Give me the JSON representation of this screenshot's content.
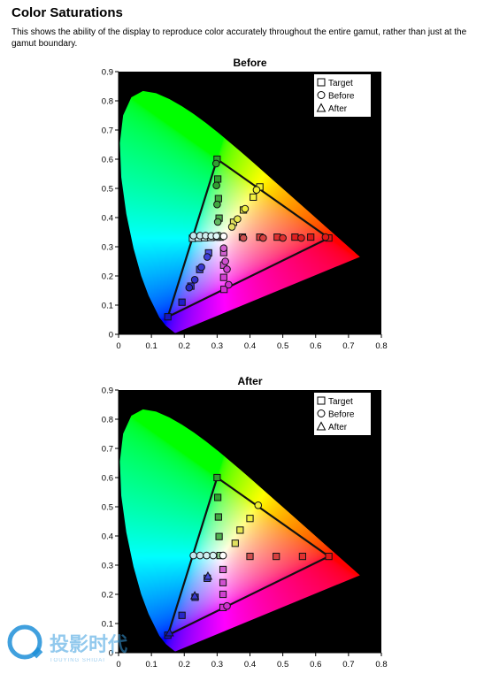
{
  "page": {
    "title": "Color Saturations",
    "description": "This shows the ability of the display to reproduce color accurately throughout the entire gamut, rather than just at the gamut boundary."
  },
  "watermark": {
    "text": "投影时代",
    "sub": "TOUYING SHIDAI"
  },
  "legend_labels": {
    "target": "Target",
    "before": "Before",
    "after": "After"
  },
  "chart_data": [
    {
      "type": "scatter",
      "title": "Before",
      "xlabel": "",
      "ylabel": "",
      "xlim": [
        0,
        0.8
      ],
      "ylim": [
        0,
        0.9
      ],
      "xticks": [
        "0",
        "0.1",
        "0.2",
        "0.3",
        "0.4",
        "0.5",
        "0.6",
        "0.7",
        "0.8"
      ],
      "yticks": [
        "0",
        "0.1",
        "0.2",
        "0.3",
        "0.4",
        "0.5",
        "0.6",
        "0.7",
        "0.8",
        "0.9"
      ],
      "legend_position": "top-right",
      "background": "#000000",
      "gamut_triangle": [
        [
          0.3,
          0.6
        ],
        [
          0.64,
          0.33
        ],
        [
          0.15,
          0.06
        ]
      ],
      "series": [
        {
          "name": "Target",
          "marker": "square",
          "points": [
            {
              "x": 0.3,
              "y": 0.6,
              "c": "#30a030"
            },
            {
              "x": 0.302,
              "y": 0.532,
              "c": "#30a030"
            },
            {
              "x": 0.304,
              "y": 0.465,
              "c": "#40a840"
            },
            {
              "x": 0.306,
              "y": 0.398,
              "c": "#50b050"
            },
            {
              "x": 0.309,
              "y": 0.333,
              "c": "#90d090"
            },
            {
              "x": 0.377,
              "y": 0.333,
              "c": "#d05050"
            },
            {
              "x": 0.43,
              "y": 0.333,
              "c": "#d84040"
            },
            {
              "x": 0.483,
              "y": 0.333,
              "c": "#e03030"
            },
            {
              "x": 0.537,
              "y": 0.333,
              "c": "#e02020"
            },
            {
              "x": 0.585,
              "y": 0.333,
              "c": "#e01818"
            },
            {
              "x": 0.64,
              "y": 0.33,
              "c": "#e01818"
            },
            {
              "x": 0.3,
              "y": 0.333,
              "c": "#c0d8ff"
            },
            {
              "x": 0.274,
              "y": 0.279,
              "c": "#5050e0"
            },
            {
              "x": 0.247,
              "y": 0.222,
              "c": "#4040d8"
            },
            {
              "x": 0.22,
              "y": 0.165,
              "c": "#3030d0"
            },
            {
              "x": 0.193,
              "y": 0.11,
              "c": "#2020c8"
            },
            {
              "x": 0.15,
              "y": 0.06,
              "c": "#1818c0"
            },
            {
              "x": 0.35,
              "y": 0.384,
              "c": "#e0e060"
            },
            {
              "x": 0.38,
              "y": 0.426,
              "c": "#e8e850"
            },
            {
              "x": 0.41,
              "y": 0.47,
              "c": "#f0f040"
            },
            {
              "x": 0.43,
              "y": 0.505,
              "c": "#f0f030"
            },
            {
              "x": 0.32,
              "y": 0.28,
              "c": "#d060d0"
            },
            {
              "x": 0.32,
              "y": 0.237,
              "c": "#d050d0"
            },
            {
              "x": 0.32,
              "y": 0.195,
              "c": "#d040d0"
            },
            {
              "x": 0.321,
              "y": 0.154,
              "c": "#d030d0"
            },
            {
              "x": 0.225,
              "y": 0.329,
              "c": "#c0e8f0"
            },
            {
              "x": 0.243,
              "y": 0.33,
              "c": "#c8ecf0"
            },
            {
              "x": 0.262,
              "y": 0.331,
              "c": "#d0f0f0"
            },
            {
              "x": 0.281,
              "y": 0.332,
              "c": "#d8f4f4"
            }
          ]
        },
        {
          "name": "Before",
          "marker": "circle",
          "points": [
            {
              "x": 0.297,
              "y": 0.585,
              "c": "#30a030"
            },
            {
              "x": 0.298,
              "y": 0.51,
              "c": "#30a030"
            },
            {
              "x": 0.3,
              "y": 0.445,
              "c": "#40a840"
            },
            {
              "x": 0.302,
              "y": 0.385,
              "c": "#60b860"
            },
            {
              "x": 0.305,
              "y": 0.338,
              "c": "#a0d8a0"
            },
            {
              "x": 0.38,
              "y": 0.33,
              "c": "#d05050"
            },
            {
              "x": 0.44,
              "y": 0.33,
              "c": "#d84040"
            },
            {
              "x": 0.5,
              "y": 0.33,
              "c": "#e03030"
            },
            {
              "x": 0.556,
              "y": 0.33,
              "c": "#e02020"
            },
            {
              "x": 0.63,
              "y": 0.333,
              "c": "#e01818"
            },
            {
              "x": 0.27,
              "y": 0.265,
              "c": "#4040d8"
            },
            {
              "x": 0.252,
              "y": 0.23,
              "c": "#3838d0"
            },
            {
              "x": 0.232,
              "y": 0.187,
              "c": "#3030c8"
            },
            {
              "x": 0.215,
              "y": 0.16,
              "c": "#2828c0"
            },
            {
              "x": 0.345,
              "y": 0.368,
              "c": "#e0e060"
            },
            {
              "x": 0.362,
              "y": 0.395,
              "c": "#e8e850"
            },
            {
              "x": 0.385,
              "y": 0.43,
              "c": "#f0f040"
            },
            {
              "x": 0.42,
              "y": 0.495,
              "c": "#f0f030"
            },
            {
              "x": 0.32,
              "y": 0.295,
              "c": "#d060d0"
            },
            {
              "x": 0.325,
              "y": 0.25,
              "c": "#d050d0"
            },
            {
              "x": 0.33,
              "y": 0.223,
              "c": "#d040d0"
            },
            {
              "x": 0.335,
              "y": 0.17,
              "c": "#d030d0"
            },
            {
              "x": 0.228,
              "y": 0.338,
              "c": "#c0e8f0"
            },
            {
              "x": 0.248,
              "y": 0.338,
              "c": "#c8ecf0"
            },
            {
              "x": 0.265,
              "y": 0.338,
              "c": "#d0f0f0"
            },
            {
              "x": 0.282,
              "y": 0.337,
              "c": "#d8f4f4"
            },
            {
              "x": 0.298,
              "y": 0.337,
              "c": "#e0f8f8"
            },
            {
              "x": 0.32,
              "y": 0.336,
              "c": "#ffffff"
            }
          ]
        }
      ]
    },
    {
      "type": "scatter",
      "title": "After",
      "xlabel": "",
      "ylabel": "",
      "xlim": [
        0,
        0.8
      ],
      "ylim": [
        0,
        0.9
      ],
      "xticks": [
        "0",
        "0.1",
        "0.2",
        "0.3",
        "0.4",
        "0.5",
        "0.6",
        "0.7",
        "0.8"
      ],
      "yticks": [
        "0",
        "0.1",
        "0.2",
        "0.3",
        "0.4",
        "0.5",
        "0.6",
        "0.7",
        "0.8",
        "0.9"
      ],
      "legend_position": "top-right",
      "background": "#000000",
      "gamut_triangle": [
        [
          0.3,
          0.6
        ],
        [
          0.64,
          0.33
        ],
        [
          0.15,
          0.06
        ]
      ],
      "series": [
        {
          "name": "Target",
          "marker": "square",
          "points": [
            {
              "x": 0.3,
              "y": 0.6,
              "c": "#30a030"
            },
            {
              "x": 0.302,
              "y": 0.532,
              "c": "#30a030"
            },
            {
              "x": 0.304,
              "y": 0.465,
              "c": "#40a840"
            },
            {
              "x": 0.306,
              "y": 0.398,
              "c": "#50b050"
            },
            {
              "x": 0.309,
              "y": 0.333,
              "c": "#90d090"
            },
            {
              "x": 0.4,
              "y": 0.33,
              "c": "#d05050"
            },
            {
              "x": 0.48,
              "y": 0.33,
              "c": "#d84040"
            },
            {
              "x": 0.56,
              "y": 0.33,
              "c": "#e03030"
            },
            {
              "x": 0.64,
              "y": 0.33,
              "c": "#e01818"
            },
            {
              "x": 0.27,
              "y": 0.255,
              "c": "#4848d8"
            },
            {
              "x": 0.233,
              "y": 0.19,
              "c": "#3838d0"
            },
            {
              "x": 0.193,
              "y": 0.128,
              "c": "#2828c8"
            },
            {
              "x": 0.15,
              "y": 0.06,
              "c": "#1818c0"
            },
            {
              "x": 0.355,
              "y": 0.375,
              "c": "#e0e060"
            },
            {
              "x": 0.37,
              "y": 0.42,
              "c": "#e8e850"
            },
            {
              "x": 0.4,
              "y": 0.46,
              "c": "#f0f040"
            },
            {
              "x": 0.318,
              "y": 0.285,
              "c": "#d060d0"
            },
            {
              "x": 0.318,
              "y": 0.24,
              "c": "#d050d0"
            },
            {
              "x": 0.318,
              "y": 0.2,
              "c": "#d040d0"
            },
            {
              "x": 0.318,
              "y": 0.155,
              "c": "#d030d0"
            }
          ]
        },
        {
          "name": "Before",
          "marker": "circle",
          "points": [
            {
              "x": 0.228,
              "y": 0.333,
              "c": "#c0e8f0"
            },
            {
              "x": 0.248,
              "y": 0.333,
              "c": "#c8ecf0"
            },
            {
              "x": 0.268,
              "y": 0.333,
              "c": "#d0f0f0"
            },
            {
              "x": 0.288,
              "y": 0.333,
              "c": "#d8f4f4"
            },
            {
              "x": 0.318,
              "y": 0.333,
              "c": "#ffffff"
            },
            {
              "x": 0.425,
              "y": 0.505,
              "c": "#f0f030"
            },
            {
              "x": 0.33,
              "y": 0.16,
              "c": "#d030d0"
            }
          ]
        },
        {
          "name": "After",
          "marker": "triangle",
          "points": [
            {
              "x": 0.272,
              "y": 0.262,
              "c": "#4848d8"
            },
            {
              "x": 0.232,
              "y": 0.195,
              "c": "#3838d0"
            },
            {
              "x": 0.155,
              "y": 0.068,
              "c": "#1818c0"
            }
          ]
        }
      ]
    }
  ]
}
